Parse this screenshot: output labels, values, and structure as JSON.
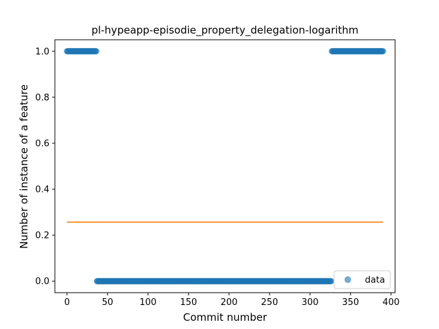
{
  "chart_data": {
    "type": "scatter",
    "title": "pl-hypeapp-episodie_property_delegation-logarithm",
    "xlabel": "Commit number",
    "ylabel": "Number of instance of a feature",
    "xlim": [
      -15,
      405
    ],
    "ylim": [
      -0.05,
      1.05
    ],
    "xticks": [
      0,
      50,
      100,
      150,
      200,
      250,
      300,
      350,
      400
    ],
    "xtick_labels": [
      "0",
      "50",
      "100",
      "150",
      "200",
      "250",
      "300",
      "350",
      "400"
    ],
    "yticks": [
      0.0,
      0.2,
      0.4,
      0.6,
      0.8,
      1.0
    ],
    "ytick_labels": [
      "0.0",
      "0.2",
      "0.4",
      "0.6",
      "0.8",
      "1.0"
    ],
    "series": [
      {
        "name": "data",
        "kind": "scatter",
        "color": "#1f77b4",
        "segments": [
          {
            "x_start": 0,
            "x_end": 36,
            "y": 1.0
          },
          {
            "x_start": 37,
            "x_end": 326,
            "y": 0.0
          },
          {
            "x_start": 327,
            "x_end": 390,
            "y": 1.0
          }
        ]
      },
      {
        "kind": "line",
        "color": "#ff7f0e",
        "x": [
          0,
          390
        ],
        "y": [
          0.257,
          0.257
        ]
      }
    ],
    "legend": {
      "placement": "lower-right",
      "entries": [
        "data"
      ]
    },
    "grid": false
  }
}
